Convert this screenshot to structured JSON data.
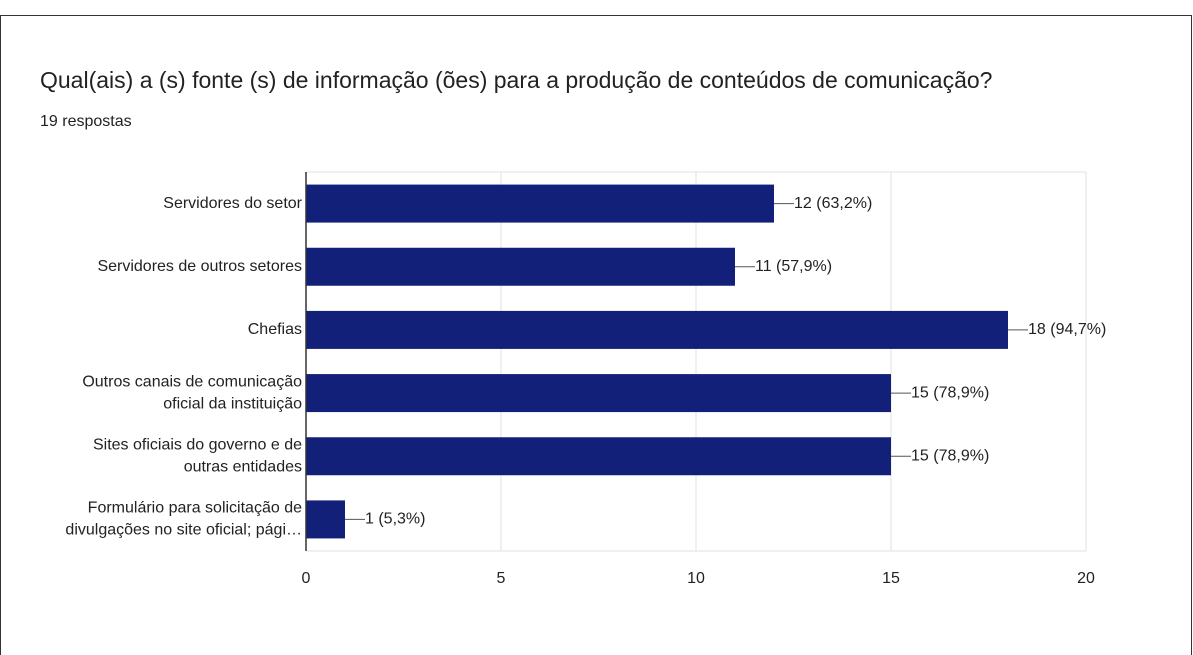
{
  "chart_data": {
    "type": "bar",
    "orientation": "horizontal",
    "title": "Qual(ais) a (s) fonte (s) de informação (ões) para a produção de conteúdos de comunicação?",
    "subtitle": "19 respostas",
    "categories": [
      [
        "Servidores do setor"
      ],
      [
        "Servidores de outros setores"
      ],
      [
        "Chefias"
      ],
      [
        "Outros canais de comunicação",
        "oficial da instituição"
      ],
      [
        "Sites oficiais do governo e de",
        "outras entidades"
      ],
      [
        "Formulário para solicitação de",
        "divulgações no site oficial; pági…"
      ]
    ],
    "values": [
      12,
      11,
      18,
      15,
      15,
      1
    ],
    "value_labels": [
      "12 (63,2%)",
      "11 (57,9%)",
      "18 (94,7%)",
      "15 (78,9%)",
      "15 (78,9%)",
      "1 (5,3%)"
    ],
    "color": "#12207a",
    "xlim": [
      0,
      20
    ],
    "xticks": [
      0,
      5,
      10,
      15,
      20
    ],
    "grid": true
  }
}
